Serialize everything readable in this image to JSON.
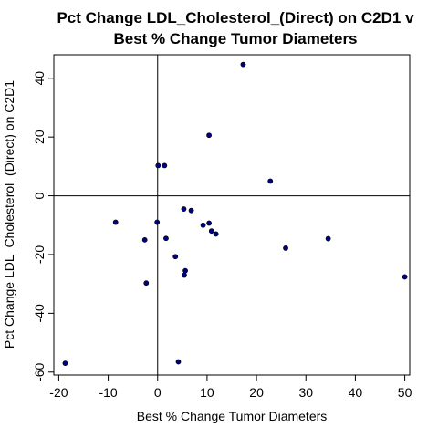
{
  "chart_data": {
    "type": "scatter",
    "title_lines": [
      "Pct Change LDL_Cholesterol_(Direct) on C2D1 v",
      "Best % Change Tumor Diameters"
    ],
    "xlabel": "Best % Change Tumor Diameters",
    "ylabel": "Pct Change LDL_Cholesterol_(Direct) on C2D1",
    "xlim": [
      -21,
      51
    ],
    "ylim": [
      -61,
      48
    ],
    "x_ticks": [
      -20,
      -10,
      0,
      10,
      20,
      30,
      40,
      50
    ],
    "y_ticks": [
      -60,
      -40,
      -20,
      0,
      20,
      40
    ],
    "reference_lines": {
      "x": 0,
      "y": 0
    },
    "point_color": "#000080",
    "points": [
      {
        "x": -18.7,
        "y": -57
      },
      {
        "x": -8.5,
        "y": -9
      },
      {
        "x": -2.6,
        "y": -15
      },
      {
        "x": -2.3,
        "y": -29.7
      },
      {
        "x": -0.1,
        "y": -9
      },
      {
        "x": 0.1,
        "y": 10.3
      },
      {
        "x": 1.4,
        "y": 10.3
      },
      {
        "x": 1.7,
        "y": -14.5
      },
      {
        "x": 3.6,
        "y": -20.7
      },
      {
        "x": 4.2,
        "y": -56.5
      },
      {
        "x": 5.3,
        "y": -4.5
      },
      {
        "x": 5.4,
        "y": -27
      },
      {
        "x": 5.6,
        "y": -25.5
      },
      {
        "x": 6.8,
        "y": -5
      },
      {
        "x": 9.2,
        "y": -10
      },
      {
        "x": 10.4,
        "y": 20.6
      },
      {
        "x": 10.4,
        "y": -9.3
      },
      {
        "x": 10.9,
        "y": -12
      },
      {
        "x": 11.8,
        "y": -13
      },
      {
        "x": 17.3,
        "y": 44.7
      },
      {
        "x": 22.8,
        "y": 5
      },
      {
        "x": 25.9,
        "y": -17.8
      },
      {
        "x": 34.5,
        "y": -14.6
      },
      {
        "x": 50,
        "y": -27.6
      }
    ]
  }
}
